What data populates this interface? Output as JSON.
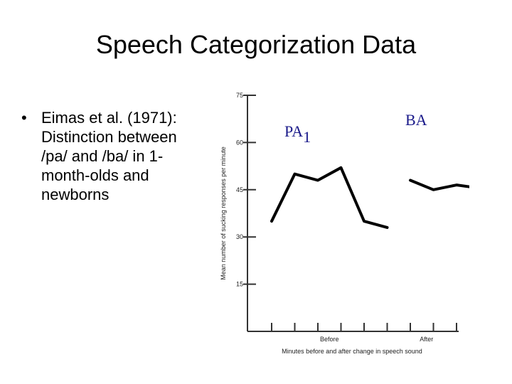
{
  "slide": {
    "title": "Speech Categorization Data",
    "bullet": "Eimas et al. (1971): Distinction between /pa/ and /ba/ in 1-month-olds and newborns",
    "bullet_lines": [
      "Eimas et al. (1971):",
      "Distinction between",
      "/pa/ and /ba/ in 1-",
      "month-olds and",
      "newborns"
    ],
    "bullet_symbol": "•"
  },
  "chart_data": {
    "type": "line",
    "title": "",
    "xlabel": "Minutes before and after change in speech sound",
    "ylabel": "Mean number of sucking responses per minute",
    "x_group_labels": [
      "Before",
      "After"
    ],
    "ylim": [
      0,
      75
    ],
    "yticks": [
      15,
      30,
      45,
      60,
      75
    ],
    "grid": false,
    "series": [
      {
        "name": "PA1",
        "x": [
          1,
          2,
          3,
          4,
          5,
          6
        ],
        "values": [
          35,
          50,
          48,
          52,
          35,
          33
        ]
      },
      {
        "name": "BA",
        "x": [
          7,
          8,
          9,
          10
        ],
        "values": [
          48,
          45,
          46.5,
          45.5
        ]
      }
    ],
    "xticks": [
      1,
      2,
      3,
      4,
      5,
      6,
      7,
      8,
      9,
      10
    ],
    "colors": {
      "line": "#000000",
      "label": "#1a1a8a",
      "axis": "#333333"
    }
  }
}
